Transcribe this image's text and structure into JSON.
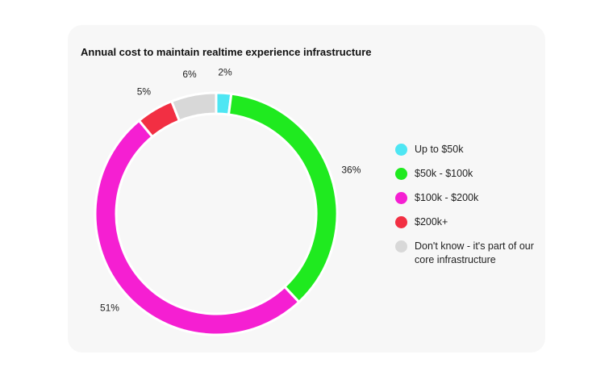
{
  "chart_data": {
    "type": "pie",
    "variant": "donut",
    "title": "Annual cost to maintain realtime experience infrastructure",
    "categories": [
      "Up to $50k",
      "$50k - $100k",
      "$100k - $200k",
      "$200k+",
      "Don't know - it's part of our core infrastructure"
    ],
    "values": [
      2,
      36,
      51,
      5,
      6
    ],
    "data_labels": [
      "2%",
      "36%",
      "51%",
      "5%",
      "6%"
    ],
    "colors": [
      "#4ee6f3",
      "#1fea1f",
      "#f51fd2",
      "#f22f43",
      "#d8d8d8"
    ],
    "legend_position": "right"
  }
}
